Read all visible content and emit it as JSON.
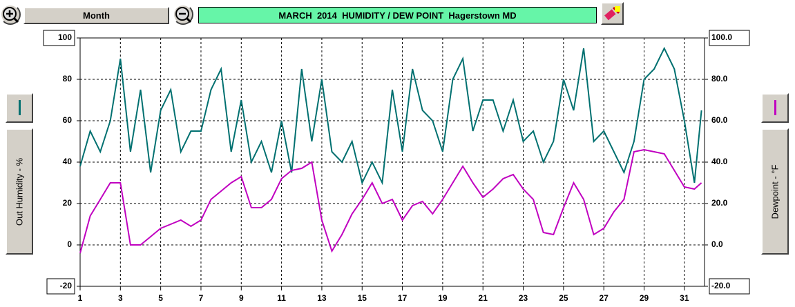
{
  "ui": {
    "range_button": "Month"
  },
  "chart_data": {
    "type": "line",
    "title": "MARCH  2014  HUMIDITY / DEW POINT  Hagerstown MD",
    "x": [
      1,
      1.5,
      2,
      2.5,
      3,
      3.5,
      4,
      4.5,
      5,
      5.5,
      6,
      6.5,
      7,
      7.5,
      8,
      8.5,
      9,
      9.5,
      10,
      10.5,
      11,
      11.5,
      12,
      12.5,
      13,
      13.5,
      14,
      14.5,
      15,
      15.5,
      16,
      16.5,
      17,
      17.5,
      18,
      18.5,
      19,
      19.5,
      20,
      20.5,
      21,
      21.5,
      22,
      22.5,
      23,
      23.5,
      24,
      24.5,
      25,
      25.5,
      26,
      26.5,
      27,
      27.5,
      28,
      28.5,
      29,
      29.5,
      30,
      30.5,
      31,
      31.5,
      31.85
    ],
    "xlim": [
      1,
      32
    ],
    "xticks": [
      1,
      3,
      5,
      7,
      9,
      11,
      13,
      15,
      17,
      19,
      21,
      23,
      25,
      27,
      29,
      31
    ],
    "ylim": [
      -20,
      100
    ],
    "yticks": [
      -20,
      0,
      20,
      40,
      60,
      80,
      100
    ],
    "y2lim": [
      -20,
      100
    ],
    "y2ticks": [
      {
        "value": -20,
        "label": "-20.0"
      },
      {
        "value": 0,
        "label": "0.0"
      },
      {
        "value": 20,
        "label": "20.0"
      },
      {
        "value": 40,
        "label": "40.0"
      },
      {
        "value": 60,
        "label": "60.0"
      },
      {
        "value": 80,
        "label": "80.0"
      },
      {
        "value": 100,
        "label": "100.0"
      }
    ],
    "grid": true,
    "series": [
      {
        "name": "Out Humidity - %",
        "color": "#007070",
        "values": [
          38,
          55,
          45,
          60,
          90,
          45,
          75,
          35,
          65,
          75,
          45,
          55,
          55,
          75,
          85,
          45,
          70,
          40,
          50,
          35,
          60,
          35,
          85,
          50,
          80,
          45,
          40,
          50,
          30,
          40,
          30,
          75,
          45,
          85,
          65,
          60,
          45,
          80,
          90,
          55,
          70,
          70,
          55,
          70,
          50,
          55,
          40,
          50,
          80,
          65,
          95,
          50,
          55,
          45,
          35,
          50,
          80,
          85,
          95,
          85,
          60,
          30,
          65
        ]
      },
      {
        "name": "Dewpoint - °F",
        "color": "#c000c0",
        "axis": "y2",
        "values": [
          -4,
          14,
          22,
          30,
          30,
          0,
          0,
          4,
          8,
          10,
          12,
          9,
          12,
          22,
          26,
          30,
          33,
          18,
          18,
          22,
          32,
          36,
          37,
          40,
          12,
          -3,
          5,
          15,
          22,
          30,
          20,
          22,
          12,
          19,
          21,
          15,
          22,
          30,
          38,
          30,
          23,
          27,
          32,
          34,
          27,
          22,
          6,
          5,
          18,
          30,
          22,
          5,
          8,
          16,
          22,
          45,
          46,
          45,
          44,
          36,
          28,
          27,
          30
        ]
      }
    ]
  }
}
